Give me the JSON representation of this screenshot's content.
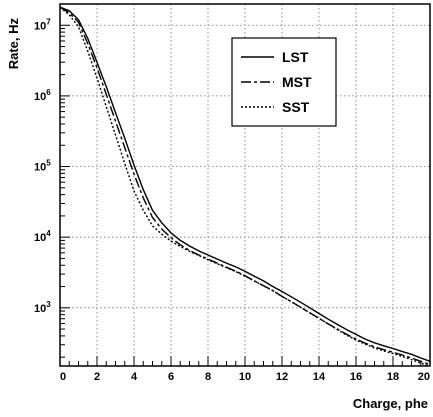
{
  "chart_data": {
    "type": "line",
    "xlabel": "Charge, phe",
    "ylabel": "Rate, Hz",
    "xlim": [
      0,
      20
    ],
    "ylim": [
      150,
      20000000
    ],
    "y_scale": "log",
    "grid": true,
    "legend_position": "top-right",
    "x_ticks": [
      {
        "value": 0,
        "label": "0"
      },
      {
        "value": 2,
        "label": "2"
      },
      {
        "value": 4,
        "label": "4"
      },
      {
        "value": 6,
        "label": "6"
      },
      {
        "value": 8,
        "label": "8"
      },
      {
        "value": 10,
        "label": "10"
      },
      {
        "value": 12,
        "label": "12"
      },
      {
        "value": 14,
        "label": "14"
      },
      {
        "value": 16,
        "label": "16"
      },
      {
        "value": 18,
        "label": "18"
      },
      {
        "value": 20,
        "label": "20"
      }
    ],
    "y_ticks": [
      {
        "value": 1000,
        "base": "10",
        "exp": "3"
      },
      {
        "value": 10000,
        "base": "10",
        "exp": "4"
      },
      {
        "value": 100000,
        "base": "10",
        "exp": "5"
      },
      {
        "value": 1000000,
        "base": "10",
        "exp": "6"
      },
      {
        "value": 10000000,
        "base": "10",
        "exp": "7"
      }
    ],
    "series": [
      {
        "name": "LST",
        "style": "solid",
        "x": [
          0,
          0.5,
          1,
          1.5,
          2,
          2.5,
          3,
          3.5,
          4,
          4.5,
          5,
          5.5,
          6,
          6.5,
          7,
          7.5,
          8,
          8.5,
          9,
          9.5,
          10,
          10.5,
          11,
          11.5,
          12,
          12.5,
          13,
          13.5,
          14,
          14.5,
          15,
          15.5,
          16,
          16.5,
          17,
          17.5,
          18,
          18.5,
          19,
          19.5,
          20
        ],
        "values": [
          18000000,
          16000000,
          12000000,
          6500000,
          3000000,
          1350000,
          580000,
          250000,
          105000,
          47000,
          24000,
          16000,
          11500,
          9000,
          7500,
          6400,
          5600,
          4900,
          4300,
          3800,
          3300,
          2800,
          2400,
          2000,
          1700,
          1430,
          1200,
          1000,
          830,
          690,
          580,
          490,
          420,
          360,
          320,
          290,
          265,
          240,
          220,
          195,
          175
        ]
      },
      {
        "name": "MST",
        "style": "longdash",
        "x": [
          0,
          0.5,
          1,
          1.5,
          2,
          2.5,
          3,
          3.5,
          4,
          4.5,
          5,
          5.5,
          6,
          6.5,
          7,
          7.5,
          8,
          8.5,
          9,
          9.5,
          10,
          10.5,
          11,
          11.5,
          12,
          12.5,
          13,
          13.5,
          14,
          14.5,
          15,
          15.5,
          16,
          16.5,
          17,
          17.5,
          18,
          18.5,
          19,
          19.5,
          20
        ],
        "values": [
          18000000,
          15000000,
          11000000,
          5500000,
          2500000,
          1050000,
          440000,
          185000,
          78000,
          36000,
          19000,
          13000,
          9800,
          7800,
          6500,
          5600,
          4900,
          4300,
          3750,
          3300,
          2850,
          2400,
          2050,
          1750,
          1450,
          1220,
          1020,
          850,
          710,
          590,
          500,
          420,
          360,
          315,
          280,
          255,
          235,
          215,
          195,
          175,
          158
        ]
      },
      {
        "name": "SST",
        "style": "dotted",
        "x": [
          0,
          0.5,
          1,
          1.5,
          2,
          2.5,
          3,
          3.5,
          4,
          4.5,
          5,
          5.5,
          6,
          6.5,
          7,
          7.5,
          8,
          8.5,
          9,
          9.5,
          10,
          10.5,
          11,
          11.5,
          12,
          12.5,
          13,
          13.5,
          14,
          14.5,
          15,
          15.5,
          16,
          16.5,
          17,
          17.5,
          18,
          18.5,
          19,
          19.5,
          20
        ],
        "values": [
          18000000,
          14000000,
          9500000,
          4300000,
          1800000,
          700000,
          280000,
          110000,
          45000,
          24000,
          14500,
          11000,
          8800,
          7400,
          6300,
          5500,
          4800,
          4200,
          3700,
          3250,
          2800,
          2400,
          2050,
          1750,
          1450,
          1220,
          1020,
          850,
          710,
          590,
          490,
          410,
          350,
          305,
          270,
          245,
          225,
          205,
          185,
          165,
          150
        ]
      }
    ]
  }
}
